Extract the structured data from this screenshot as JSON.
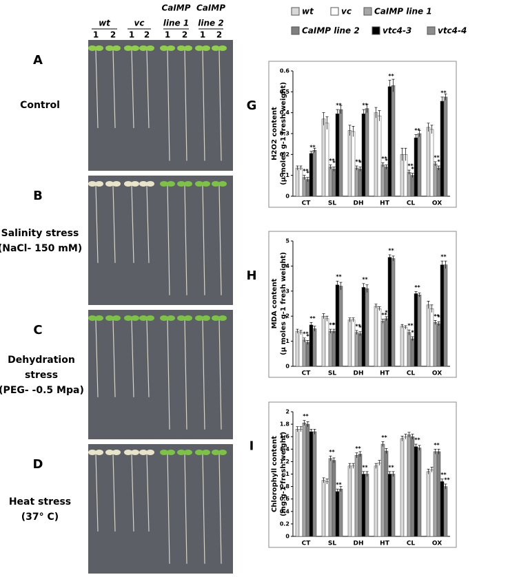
{
  "photo": {
    "columns": [
      {
        "lines": [
          "wt"
        ],
        "reps": [
          "1",
          "2"
        ]
      },
      {
        "lines": [
          "vc"
        ],
        "reps": [
          "1",
          "2"
        ]
      },
      {
        "lines": [
          "CaIMP",
          "line 1"
        ],
        "reps": [
          "1",
          "2"
        ]
      },
      {
        "lines": [
          "CaIMP",
          "line 2"
        ],
        "reps": [
          "1",
          "2"
        ]
      }
    ],
    "panels": [
      {
        "label": "A",
        "caption": [
          "Control"
        ]
      },
      {
        "label": "B",
        "caption": [
          "Salinity stress",
          "(NaCl- 150 mM)"
        ]
      },
      {
        "label": "C",
        "caption": [
          "Dehydration",
          "stress",
          "(PEG- -0.5 Mpa)"
        ]
      },
      {
        "label": "D",
        "caption": [
          "Heat stress",
          "(37° C)"
        ]
      }
    ]
  },
  "chart_data": [
    {
      "type": "bar",
      "panel_label": "G",
      "ylabel": [
        "H2O2 content",
        "(µ moles g-1 fresh weight)"
      ],
      "categories": [
        "CT",
        "SL",
        "DH",
        "HT",
        "CL",
        "OX"
      ],
      "ylim": [
        0,
        0.6
      ],
      "yticks": [
        0,
        0.1,
        0.2,
        0.3,
        0.4,
        0.5,
        0.6
      ],
      "series": [
        {
          "name": "wt",
          "color": "#d9d9d9",
          "values": [
            0.135,
            0.37,
            0.315,
            0.4,
            0.2,
            0.33
          ],
          "errors": [
            0.01,
            0.03,
            0.025,
            0.025,
            0.03,
            0.02
          ],
          "significance": [
            null,
            null,
            null,
            null,
            null,
            null
          ]
        },
        {
          "name": "vc",
          "color": "#ffffff",
          "values": [
            0.135,
            0.35,
            0.31,
            0.385,
            0.2,
            0.32
          ],
          "errors": [
            0.01,
            0.03,
            0.025,
            0.025,
            0.03,
            0.02
          ],
          "significance": [
            null,
            null,
            null,
            null,
            null,
            null
          ]
        },
        {
          "name": "CaIMP line 1",
          "color": "#a6a6a6",
          "values": [
            0.09,
            0.14,
            0.135,
            0.15,
            0.115,
            0.155
          ],
          "errors": [
            0.01,
            0.01,
            0.01,
            0.01,
            0.01,
            0.01
          ],
          "significance": [
            "**",
            "**",
            "**",
            "**",
            "**",
            "**"
          ]
        },
        {
          "name": "CaIMP line 2",
          "color": "#7f7f7f",
          "values": [
            0.08,
            0.13,
            0.13,
            0.14,
            0.1,
            0.135
          ],
          "errors": [
            0.01,
            0.01,
            0.01,
            0.01,
            0.01,
            0.01
          ],
          "significance": [
            "**",
            "**",
            "**",
            "**",
            "**",
            "**"
          ]
        },
        {
          "name": "vtc4-3",
          "color": "#000000",
          "values": [
            0.205,
            0.395,
            0.395,
            0.525,
            0.28,
            0.455
          ],
          "errors": [
            0.01,
            0.02,
            0.02,
            0.03,
            0.015,
            0.02
          ],
          "significance": [
            "**",
            "**",
            "**",
            "**",
            "**",
            "**"
          ]
        },
        {
          "name": "vtc4-4",
          "color": "#8c8c8c",
          "values": [
            0.22,
            0.415,
            0.42,
            0.53,
            0.3,
            0.475
          ],
          "errors": [
            0.01,
            0.02,
            0.02,
            0.03,
            0.015,
            0.015
          ],
          "significance": [
            null,
            null,
            null,
            null,
            null,
            null
          ]
        }
      ]
    },
    {
      "type": "bar",
      "panel_label": "H",
      "ylabel": [
        "MDA content",
        "(µ moles g-1 fresh  weight)"
      ],
      "categories": [
        "CT",
        "SL",
        "DH",
        "HT",
        "CL",
        "OX"
      ],
      "ylim": [
        0,
        5
      ],
      "yticks": [
        0,
        1,
        2,
        3,
        4,
        5
      ],
      "series": [
        {
          "color": "#d9d9d9",
          "values": [
            1.4,
            2.0,
            1.85,
            2.4,
            1.6,
            2.45
          ],
          "errors": [
            0.08,
            0.1,
            0.08,
            0.08,
            0.07,
            0.15
          ],
          "significance": [
            null,
            null,
            null,
            null,
            null,
            null
          ]
        },
        {
          "color": "#ffffff",
          "values": [
            1.35,
            1.9,
            1.85,
            2.3,
            1.55,
            2.3
          ],
          "errors": [
            0.08,
            0.1,
            0.08,
            0.08,
            0.07,
            0.15
          ],
          "significance": [
            null,
            null,
            null,
            null,
            null,
            null
          ]
        },
        {
          "color": "#a6a6a6",
          "values": [
            1.05,
            1.4,
            1.35,
            1.8,
            1.35,
            1.75
          ],
          "errors": [
            0.08,
            0.08,
            0.08,
            0.08,
            0.1,
            0.08
          ],
          "significance": [
            "**",
            "**",
            "**",
            "**",
            "**",
            "**"
          ]
        },
        {
          "color": "#7f7f7f",
          "values": [
            0.95,
            1.4,
            1.3,
            1.9,
            1.1,
            1.7
          ],
          "errors": [
            0.08,
            0.08,
            0.08,
            0.08,
            0.08,
            0.08
          ],
          "significance": [
            "**",
            "**",
            "**",
            "**",
            "**",
            "**"
          ]
        },
        {
          "color": "#000000",
          "values": [
            1.65,
            3.25,
            3.15,
            4.35,
            2.9,
            4.05
          ],
          "errors": [
            0.1,
            0.15,
            0.15,
            0.1,
            0.08,
            0.15
          ],
          "significance": [
            "**",
            "**",
            "**",
            "**",
            "**",
            "**"
          ]
        },
        {
          "color": "#8c8c8c",
          "values": [
            1.5,
            3.2,
            3.1,
            4.3,
            2.85,
            4.05
          ],
          "errors": [
            0.1,
            0.15,
            0.15,
            0.1,
            0.08,
            0.15
          ],
          "significance": [
            null,
            null,
            null,
            null,
            null,
            null
          ]
        }
      ]
    },
    {
      "type": "bar",
      "panel_label": "I",
      "ylabel": [
        "Chlorophyll content",
        "(mg g-1 fresh weight)"
      ],
      "categories": [
        "CT",
        "SL",
        "DH",
        "HT",
        "CL",
        "OX"
      ],
      "ylim": [
        0,
        2
      ],
      "yticks": [
        0,
        0.2,
        0.4,
        0.6,
        0.8,
        1,
        1.2,
        1.4,
        1.6,
        1.8,
        2
      ],
      "series": [
        {
          "color": "#d9d9d9",
          "values": [
            1.72,
            0.9,
            1.13,
            1.13,
            1.57,
            1.04
          ],
          "errors": [
            0.04,
            0.04,
            0.04,
            0.04,
            0.04,
            0.04
          ],
          "significance": [
            null,
            null,
            null,
            null,
            null,
            null
          ]
        },
        {
          "color": "#ffffff",
          "values": [
            1.72,
            0.88,
            1.13,
            1.18,
            1.6,
            1.07
          ],
          "errors": [
            0.04,
            0.04,
            0.04,
            0.04,
            0.04,
            0.04
          ],
          "significance": [
            null,
            null,
            null,
            null,
            null,
            null
          ]
        },
        {
          "color": "#a6a6a6",
          "values": [
            1.82,
            1.25,
            1.3,
            1.48,
            1.63,
            1.36
          ],
          "errors": [
            0.04,
            0.04,
            0.04,
            0.04,
            0.04,
            0.04
          ],
          "significance": [
            "**",
            "**",
            "**",
            "**",
            null,
            "**"
          ]
        },
        {
          "color": "#7f7f7f",
          "values": [
            1.8,
            1.22,
            1.32,
            1.37,
            1.6,
            1.36
          ],
          "errors": [
            0.04,
            0.04,
            0.04,
            0.04,
            0.04,
            0.04
          ],
          "significance": [
            null,
            null,
            null,
            null,
            null,
            null
          ]
        },
        {
          "color": "#000000",
          "values": [
            1.68,
            0.72,
            1.0,
            1.0,
            1.44,
            0.88
          ],
          "errors": [
            0.04,
            0.04,
            0.04,
            0.04,
            0.04,
            0.04
          ],
          "significance": [
            null,
            "**",
            "**",
            "**",
            "**",
            "**"
          ]
        },
        {
          "color": "#8c8c8c",
          "values": [
            1.68,
            0.76,
            1.0,
            1.0,
            1.42,
            0.8
          ],
          "errors": [
            0.04,
            0.04,
            0.04,
            0.04,
            0.04,
            0.04
          ],
          "significance": [
            null,
            null,
            null,
            null,
            null,
            "**"
          ]
        }
      ]
    }
  ]
}
